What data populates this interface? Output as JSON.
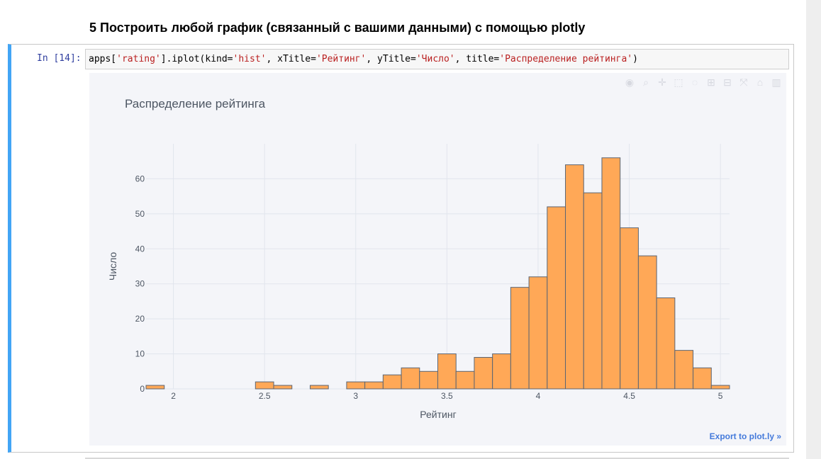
{
  "heading": "5 Построить любой график (связанный с вашими данными) с помощью plotly",
  "cell": {
    "prompt": "In [14]:",
    "code_parts": [
      {
        "t": "apps[",
        "s": false
      },
      {
        "t": "'rating'",
        "s": true
      },
      {
        "t": "].iplot(kind=",
        "s": false
      },
      {
        "t": "'hist'",
        "s": true
      },
      {
        "t": ", xTitle=",
        "s": false
      },
      {
        "t": "'Рейтинг'",
        "s": true
      },
      {
        "t": ", yTitle=",
        "s": false
      },
      {
        "t": "'Число'",
        "s": true
      },
      {
        "t": ", title=",
        "s": false
      },
      {
        "t": "'Распределение рейтинга'",
        "s": true
      },
      {
        "t": ")",
        "s": false
      }
    ]
  },
  "modebar_icons": [
    "camera-icon",
    "zoom-icon",
    "pan-icon",
    "box-select-icon",
    "lasso-icon",
    "zoom-in-icon",
    "zoom-out-icon",
    "autoscale-icon",
    "reset-axes-icon",
    "plotly-logo-icon"
  ],
  "export_link": "Export to plot.ly »",
  "colors": {
    "bar_fill": "#ffa857",
    "bar_stroke": "#5b6573",
    "plot_bg": "#f4f5f9",
    "grid": "#e1e5ed",
    "accent": "#42a5f5"
  },
  "chart_data": {
    "type": "bar",
    "title": "Распределение рейтинга",
    "xlabel": "Рейтинг",
    "ylabel": "Число",
    "xlim": [
      1.85,
      5.05
    ],
    "ylim": [
      0,
      70
    ],
    "xticks": [
      2,
      2.5,
      3,
      3.5,
      4,
      4.5,
      5
    ],
    "xtick_labels": [
      "2",
      "2.5",
      "3",
      "3.5",
      "4",
      "4.5",
      "5"
    ],
    "yticks": [
      0,
      10,
      20,
      30,
      40,
      50,
      60
    ],
    "bin_width": 0.1,
    "bin_starts": [
      1.85,
      2.45,
      2.55,
      2.75,
      2.95,
      3.05,
      3.15,
      3.25,
      3.35,
      3.45,
      3.55,
      3.65,
      3.75,
      3.85,
      3.95,
      4.05,
      4.15,
      4.25,
      4.35,
      4.45,
      4.55,
      4.65,
      4.75,
      4.85,
      4.95
    ],
    "values": [
      1,
      2,
      1,
      1,
      2,
      2,
      4,
      6,
      5,
      10,
      5,
      9,
      10,
      29,
      32,
      52,
      64,
      56,
      66,
      46,
      38,
      26,
      11,
      6,
      1
    ],
    "grid": true,
    "legend": "none"
  }
}
